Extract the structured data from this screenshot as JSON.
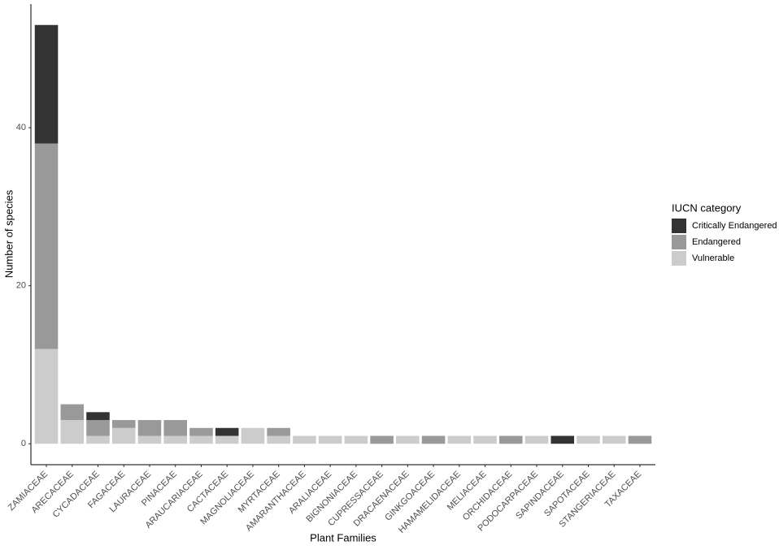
{
  "chart_data": {
    "type": "stacked_bar",
    "x_label": "Plant Families",
    "y_label": "Number of species",
    "legend_title": "IUCN category",
    "categories": [
      "ZAMIACEAE",
      "ARECACEAE",
      "CYCADACEAE",
      "FAGACEAE",
      "LAURACEAE",
      "PINACEAE",
      "ARAUCARIACEAE",
      "CACTACEAE",
      "MAGNOLIACEAE",
      "MYRTACEAE",
      "AMARANTHACEAE",
      "ARALIACEAE",
      "BIGNONIACEAE",
      "CUPRESSACEAE",
      "DRACAENACEAE",
      "GINKGOACEAE",
      "HAMAMELIDACEAE",
      "MELIACEAE",
      "ORCHIDACEAE",
      "PODOCARPACEAE",
      "SAPINDACEAE",
      "SAPOTACEAE",
      "STANGERIACEAE",
      "TAXACEAE"
    ],
    "series": [
      {
        "name": "Critically Endangered",
        "color": "#333333",
        "values": [
          15,
          0,
          1,
          0,
          0,
          0,
          0,
          1,
          0,
          0,
          0,
          0,
          0,
          0,
          0,
          0,
          0,
          0,
          0,
          0,
          1,
          0,
          0,
          0
        ]
      },
      {
        "name": "Endangered",
        "color": "#999999",
        "values": [
          26,
          2,
          2,
          1,
          2,
          2,
          1,
          0,
          0,
          1,
          0,
          0,
          0,
          1,
          0,
          1,
          0,
          0,
          1,
          0,
          0,
          0,
          0,
          1
        ]
      },
      {
        "name": "Vulnerable",
        "color": "#cccccc",
        "values": [
          12,
          3,
          1,
          2,
          1,
          1,
          1,
          1,
          2,
          1,
          1,
          1,
          1,
          0,
          1,
          0,
          1,
          1,
          0,
          1,
          0,
          1,
          1,
          0
        ]
      }
    ],
    "ylim": [
      -2.65,
      55.65
    ],
    "yticks": [
      0,
      20,
      40
    ],
    "legend": "right"
  }
}
